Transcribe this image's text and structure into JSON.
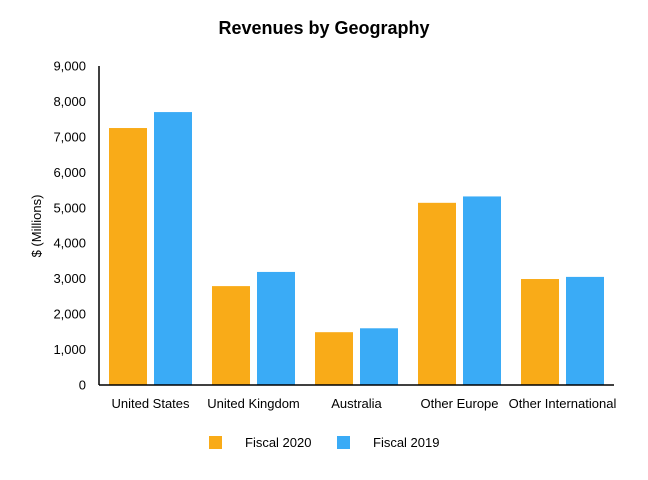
{
  "chart_data": {
    "type": "bar",
    "title": "Revenues by Geography",
    "xlabel": "",
    "ylabel": "$ (Millions)",
    "ylim": [
      0,
      9000
    ],
    "yticks": [
      0,
      1000,
      2000,
      3000,
      4000,
      5000,
      6000,
      7000,
      8000,
      9000
    ],
    "ytick_labels": [
      "0",
      "1,000",
      "2,000",
      "3,000",
      "4,000",
      "5,000",
      "6,000",
      "7,000",
      "8,000",
      "9,000"
    ],
    "categories": [
      "United States",
      "United Kingdom",
      "Australia",
      "Other Europe",
      "Other International"
    ],
    "series": [
      {
        "name": "Fiscal 2020",
        "color": "#F9AB18",
        "values": [
          7250,
          2790,
          1490,
          5140,
          2990
        ]
      },
      {
        "name": "Fiscal 2019",
        "color": "#3AABF6",
        "values": [
          7700,
          3190,
          1600,
          5320,
          3050
        ]
      }
    ],
    "grid": false,
    "legend": "bottom"
  }
}
